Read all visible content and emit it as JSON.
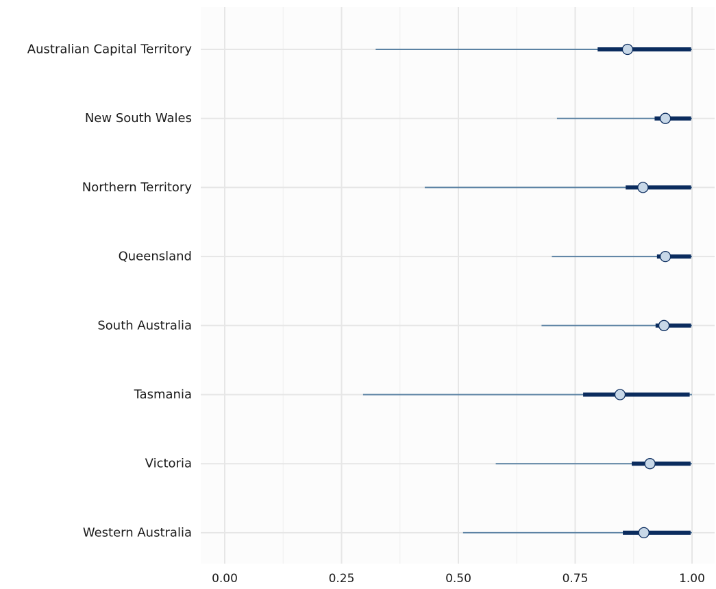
{
  "chart_data": {
    "type": "interval",
    "title": "",
    "xlabel": "",
    "ylabel": "",
    "xlim": [
      0,
      1
    ],
    "x_ticks": [
      "0.00",
      "0.25",
      "0.50",
      "0.75",
      "1.00"
    ],
    "x_tick_values": [
      0,
      0.25,
      0.5,
      0.75,
      1.0
    ],
    "x_minor_tick_values": [
      0.125,
      0.375,
      0.625,
      0.875
    ],
    "grid": true,
    "categories": [
      "Australian Capital Territory",
      "New South Wales",
      "Northern Territory",
      "Queensland",
      "South Australia",
      "Tasmania",
      "Victoria",
      "Western Australia"
    ],
    "point": [
      0.862,
      0.943,
      0.895,
      0.943,
      0.94,
      0.846,
      0.91,
      0.897
    ],
    "inner_interval": [
      [
        0.798,
        0.998
      ],
      [
        0.92,
        0.998
      ],
      [
        0.858,
        0.998
      ],
      [
        0.925,
        0.998
      ],
      [
        0.922,
        0.998
      ],
      [
        0.767,
        0.995
      ],
      [
        0.871,
        0.997
      ],
      [
        0.852,
        0.997
      ]
    ],
    "outer_interval": [
      [
        0.323,
        1.0
      ],
      [
        0.711,
        1.0
      ],
      [
        0.428,
        1.0
      ],
      [
        0.7,
        1.0
      ],
      [
        0.678,
        1.0
      ],
      [
        0.296,
        1.0
      ],
      [
        0.58,
        1.0
      ],
      [
        0.51,
        1.0
      ]
    ],
    "colors": {
      "outer_line": "#5b82a3",
      "inner_line": "#0b2c5e",
      "point_fill": "#c8d8e8",
      "point_stroke": "#0b2c5e",
      "grid_major": "#e6e6e6",
      "grid_minor": "#f0f0f0",
      "panel_bg": "#fcfcfc"
    }
  }
}
